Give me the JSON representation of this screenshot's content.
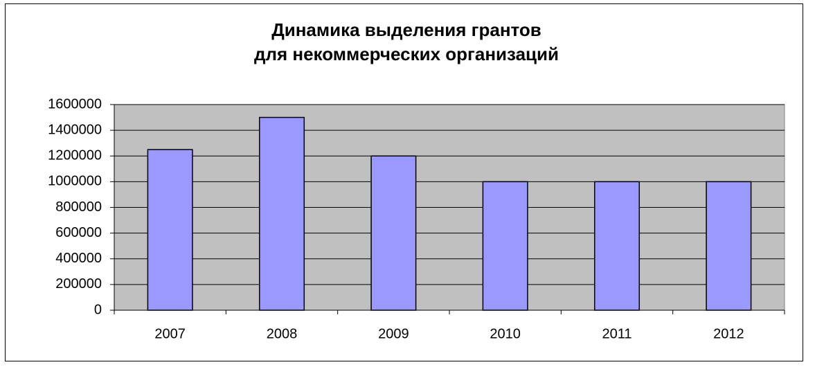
{
  "chart_data": {
    "type": "bar",
    "title": [
      "Динамика выделения грантов",
      "для некоммерческих организаций"
    ],
    "categories": [
      "2007",
      "2008",
      "2009",
      "2010",
      "2011",
      "2012"
    ],
    "values": [
      1250000,
      1500000,
      1200000,
      1000000,
      1000000,
      1000000
    ],
    "color": "#9999ff",
    "ylim": [
      0,
      1600000
    ],
    "yticks": [
      0,
      200000,
      400000,
      600000,
      800000,
      1000000,
      1200000,
      1400000,
      1600000
    ],
    "grid": true
  }
}
